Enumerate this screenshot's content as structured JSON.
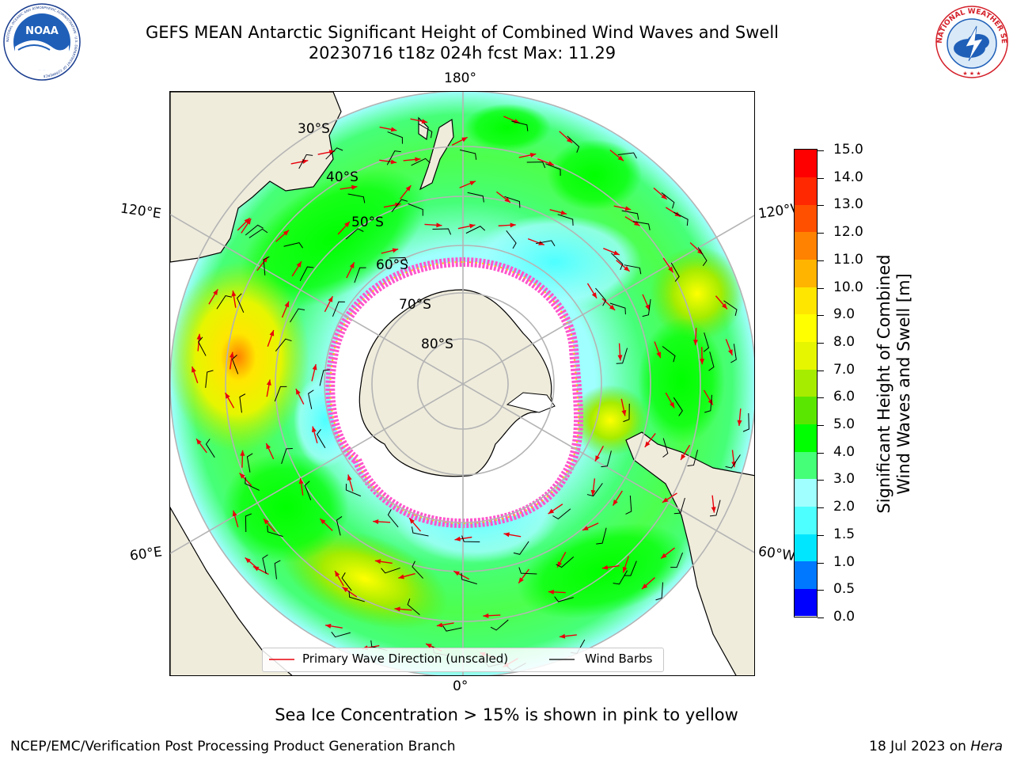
{
  "header": {
    "title_line1": "GEFS MEAN Antarctic Significant Height of Combined Wind Waves and Swell",
    "title_line2": "20230716 t18z 024h fcst   Max: 11.29"
  },
  "logos": {
    "noaa_text": "NOAA",
    "noaa_ring": "NATIONAL OCEANIC AND ATMOSPHERIC ADMINISTRATION · U.S. DEPARTMENT OF COMMERCE",
    "nws_ring": "NATIONAL WEATHER SERVICE"
  },
  "map": {
    "lon_labels": {
      "top": "180°",
      "bottom": "0°",
      "upper_left": "120°E",
      "upper_right": "120°W",
      "lower_left": "60°E",
      "lower_right": "60°W"
    },
    "lat_labels": [
      "30°S",
      "40°S",
      "50°S",
      "60°S",
      "70°S",
      "80°S"
    ],
    "colors": {
      "land": "#efecdc",
      "ice_pink": "#ff55cc",
      "ice_yellow": "#ffd200",
      "arrow": "#e8000b",
      "barb": "#000000"
    }
  },
  "colorbar": {
    "title_line1": "Significant Height of Combined",
    "title_line2": "Wind Waves and Swell [m]",
    "ticks": [
      "0.0",
      "0.5",
      "1.0",
      "1.5",
      "2.0",
      "3.0",
      "4.0",
      "5.0",
      "6.0",
      "7.0",
      "8.0",
      "9.0",
      "10.0",
      "11.0",
      "12.0",
      "13.0",
      "14.0",
      "15.0"
    ],
    "colors": [
      "#0000ff",
      "#0078ff",
      "#00e6ff",
      "#4dffff",
      "#a0ffff",
      "#46ff78",
      "#00ff00",
      "#5ae600",
      "#a6ec00",
      "#e6f600",
      "#ffff00",
      "#ffe600",
      "#ffb400",
      "#ff8200",
      "#ff5000",
      "#ff2800",
      "#ff0000"
    ]
  },
  "legend": {
    "primary_wave_label": "Primary Wave Direction (unscaled)",
    "wind_barbs_label": "Wind Barbs"
  },
  "footer": {
    "note": "Sea Ice Concentration > 15% is shown in pink to yellow",
    "credit_left": "NCEP/EMC/Verification Post Processing Product Generation Branch",
    "credit_right_date": "18 Jul 2023 on ",
    "credit_right_machine": "Hera"
  }
}
